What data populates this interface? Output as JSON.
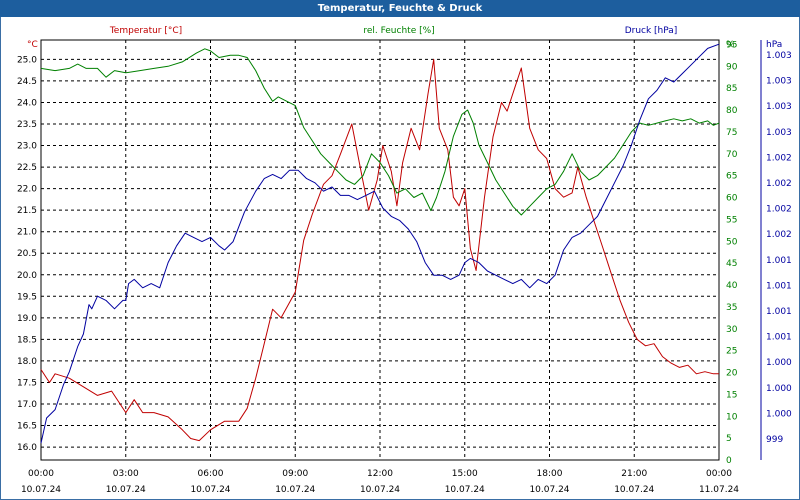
{
  "window": {
    "title": "Temperatur, Feuchte & Druck"
  },
  "colors": {
    "temperature": "#c00000",
    "humidity": "#008000",
    "pressure": "#0000a0",
    "grid": "#000000",
    "frame": "#1d5e9e"
  },
  "chart_data": {
    "type": "line",
    "title": "Temperatur, Feuchte & Druck",
    "x_time_labels": [
      "00:00",
      "03:00",
      "06:00",
      "09:00",
      "12:00",
      "15:00",
      "18:00",
      "21:00",
      "00:00"
    ],
    "x_date_labels": [
      "10.07.24",
      "10.07.24",
      "10.07.24",
      "10.07.24",
      "10.07.24",
      "10.07.24",
      "10.07.24",
      "10.07.24",
      "11.07.24"
    ],
    "x_range_hours": [
      0,
      24
    ],
    "grid": true,
    "axes": {
      "left": {
        "unit": "°C",
        "range": [
          15.7,
          25.45
        ],
        "ticks": [
          "16.0",
          "16.5",
          "17.0",
          "17.5",
          "18.0",
          "18.5",
          "19.0",
          "19.5",
          "20.0",
          "20.5",
          "21.0",
          "21.5",
          "22.0",
          "22.5",
          "23.0",
          "23.5",
          "24.0",
          "24.5",
          "25.0"
        ]
      },
      "right1": {
        "unit": "%",
        "range": [
          0,
          96
        ],
        "ticks": [
          "0",
          "5",
          "10",
          "15",
          "20",
          "25",
          "30",
          "35",
          "40",
          "45",
          "50",
          "55",
          "60",
          "65",
          "70",
          "75",
          "80",
          "85",
          "90",
          "95",
          "%"
        ]
      },
      "right2": {
        "unit": "hPa",
        "range": [
          0,
          100
        ],
        "ticks": [
          "999",
          "1.000",
          "1.000",
          "1.000",
          "1.001",
          "1.001",
          "1.001",
          "1.001",
          "1.002",
          "1.002",
          "1.002",
          "1.002",
          "1.003",
          "1.003",
          "1.003",
          "1.003",
          "hPa"
        ]
      }
    },
    "series": [
      {
        "name": "Temperatur [°C]",
        "axis": "left",
        "points": [
          [
            0,
            17.8
          ],
          [
            0.3,
            17.5
          ],
          [
            0.5,
            17.7
          ],
          [
            1,
            17.6
          ],
          [
            1.5,
            17.4
          ],
          [
            2,
            17.2
          ],
          [
            2.5,
            17.3
          ],
          [
            2.8,
            17.0
          ],
          [
            3,
            16.8
          ],
          [
            3.3,
            17.1
          ],
          [
            3.6,
            16.8
          ],
          [
            4,
            16.8
          ],
          [
            4.5,
            16.7
          ],
          [
            5,
            16.4
          ],
          [
            5.3,
            16.2
          ],
          [
            5.6,
            16.15
          ],
          [
            6,
            16.4
          ],
          [
            6.5,
            16.6
          ],
          [
            7,
            16.6
          ],
          [
            7.3,
            16.9
          ],
          [
            7.6,
            17.6
          ],
          [
            7.9,
            18.4
          ],
          [
            8.2,
            19.2
          ],
          [
            8.5,
            19.0
          ],
          [
            9,
            19.6
          ],
          [
            9.3,
            20.8
          ],
          [
            9.6,
            21.4
          ],
          [
            10,
            22.1
          ],
          [
            10.3,
            22.3
          ],
          [
            10.6,
            22.8
          ],
          [
            11,
            23.5
          ],
          [
            11.3,
            22.5
          ],
          [
            11.6,
            21.5
          ],
          [
            11.9,
            22.2
          ],
          [
            12.1,
            23.0
          ],
          [
            12.4,
            22.4
          ],
          [
            12.6,
            21.6
          ],
          [
            12.8,
            22.6
          ],
          [
            13.1,
            23.4
          ],
          [
            13.4,
            22.9
          ],
          [
            13.7,
            24.2
          ],
          [
            13.9,
            25.0
          ],
          [
            14.1,
            23.4
          ],
          [
            14.4,
            22.9
          ],
          [
            14.6,
            21.8
          ],
          [
            14.8,
            21.6
          ],
          [
            15.0,
            22.0
          ],
          [
            15.2,
            20.6
          ],
          [
            15.4,
            20.1
          ],
          [
            15.7,
            21.8
          ],
          [
            16.0,
            23.2
          ],
          [
            16.3,
            24.0
          ],
          [
            16.5,
            23.8
          ],
          [
            16.8,
            24.4
          ],
          [
            17.0,
            24.8
          ],
          [
            17.3,
            23.4
          ],
          [
            17.6,
            22.9
          ],
          [
            17.9,
            22.7
          ],
          [
            18.2,
            22.0
          ],
          [
            18.5,
            21.8
          ],
          [
            18.8,
            21.9
          ],
          [
            19.0,
            22.5
          ],
          [
            19.3,
            21.8
          ],
          [
            19.6,
            21.2
          ],
          [
            19.9,
            20.6
          ],
          [
            20.2,
            20.0
          ],
          [
            20.5,
            19.4
          ],
          [
            20.8,
            18.9
          ],
          [
            21.1,
            18.5
          ],
          [
            21.4,
            18.35
          ],
          [
            21.7,
            18.4
          ],
          [
            22,
            18.1
          ],
          [
            22.3,
            17.95
          ],
          [
            22.6,
            17.85
          ],
          [
            22.9,
            17.9
          ],
          [
            23.2,
            17.7
          ],
          [
            23.5,
            17.75
          ],
          [
            23.8,
            17.7
          ],
          [
            24,
            17.7
          ]
        ]
      },
      {
        "name": "rel. Feuchte [%]",
        "axis": "right1",
        "points": [
          [
            0,
            89.5
          ],
          [
            0.5,
            89
          ],
          [
            1,
            89.5
          ],
          [
            1.3,
            90.5
          ],
          [
            1.6,
            89.5
          ],
          [
            2,
            89.5
          ],
          [
            2.3,
            87.5
          ],
          [
            2.6,
            89
          ],
          [
            3,
            88.5
          ],
          [
            3.5,
            89
          ],
          [
            4,
            89.5
          ],
          [
            4.5,
            90
          ],
          [
            5,
            91
          ],
          [
            5.5,
            93
          ],
          [
            5.8,
            94
          ],
          [
            6,
            93.5
          ],
          [
            6.3,
            92
          ],
          [
            6.7,
            92.5
          ],
          [
            7,
            92.5
          ],
          [
            7.3,
            92
          ],
          [
            7.6,
            89
          ],
          [
            7.9,
            85
          ],
          [
            8.2,
            82
          ],
          [
            8.4,
            83
          ],
          [
            8.7,
            82
          ],
          [
            9,
            81
          ],
          [
            9.3,
            76
          ],
          [
            9.6,
            73
          ],
          [
            9.9,
            70
          ],
          [
            10.2,
            68
          ],
          [
            10.5,
            66
          ],
          [
            10.8,
            64
          ],
          [
            11.1,
            63
          ],
          [
            11.4,
            65
          ],
          [
            11.7,
            70
          ],
          [
            12.0,
            68
          ],
          [
            12.3,
            65
          ],
          [
            12.6,
            61
          ],
          [
            12.9,
            62
          ],
          [
            13.2,
            60
          ],
          [
            13.5,
            61
          ],
          [
            13.8,
            57
          ],
          [
            14.0,
            60
          ],
          [
            14.3,
            66
          ],
          [
            14.6,
            74
          ],
          [
            14.9,
            79
          ],
          [
            15.1,
            80
          ],
          [
            15.3,
            77
          ],
          [
            15.5,
            72
          ],
          [
            15.8,
            68
          ],
          [
            16.1,
            64
          ],
          [
            16.4,
            61
          ],
          [
            16.7,
            58
          ],
          [
            17.0,
            56
          ],
          [
            17.3,
            58
          ],
          [
            17.6,
            60
          ],
          [
            17.9,
            62
          ],
          [
            18.2,
            63
          ],
          [
            18.5,
            66
          ],
          [
            18.8,
            70
          ],
          [
            19.1,
            66
          ],
          [
            19.4,
            64
          ],
          [
            19.7,
            65
          ],
          [
            20.0,
            67
          ],
          [
            20.3,
            69
          ],
          [
            20.6,
            72
          ],
          [
            20.9,
            75
          ],
          [
            21.2,
            77
          ],
          [
            21.5,
            76.5
          ],
          [
            21.8,
            77
          ],
          [
            22.1,
            77.5
          ],
          [
            22.4,
            78
          ],
          [
            22.7,
            77.5
          ],
          [
            23,
            78
          ],
          [
            23.3,
            77
          ],
          [
            23.6,
            77.5
          ],
          [
            23.8,
            76.5
          ],
          [
            24,
            77
          ]
        ]
      },
      {
        "name": "Druck [hPa]",
        "axis": "right2",
        "points": [
          [
            0,
            4
          ],
          [
            0.2,
            10
          ],
          [
            0.5,
            12
          ],
          [
            0.8,
            18
          ],
          [
            1,
            21
          ],
          [
            1.3,
            27
          ],
          [
            1.5,
            30
          ],
          [
            1.7,
            37
          ],
          [
            1.8,
            36
          ],
          [
            2.0,
            39
          ],
          [
            2.3,
            38
          ],
          [
            2.6,
            36
          ],
          [
            2.9,
            38
          ],
          [
            3.0,
            38
          ],
          [
            3.1,
            42
          ],
          [
            3.3,
            43
          ],
          [
            3.6,
            41
          ],
          [
            3.9,
            42
          ],
          [
            4.2,
            41
          ],
          [
            4.5,
            47
          ],
          [
            4.8,
            51
          ],
          [
            5.1,
            54
          ],
          [
            5.4,
            53
          ],
          [
            5.7,
            52
          ],
          [
            6.0,
            53
          ],
          [
            6.3,
            51
          ],
          [
            6.5,
            50
          ],
          [
            6.8,
            52
          ],
          [
            7.2,
            59
          ],
          [
            7.6,
            64
          ],
          [
            7.9,
            67
          ],
          [
            8.2,
            68
          ],
          [
            8.5,
            67
          ],
          [
            8.8,
            69
          ],
          [
            9.1,
            69
          ],
          [
            9.4,
            67
          ],
          [
            9.7,
            66
          ],
          [
            10.0,
            64
          ],
          [
            10.3,
            65
          ],
          [
            10.6,
            63
          ],
          [
            10.9,
            63
          ],
          [
            11.2,
            62
          ],
          [
            11.5,
            63
          ],
          [
            11.8,
            64
          ],
          [
            12.1,
            60
          ],
          [
            12.4,
            58
          ],
          [
            12.7,
            57
          ],
          [
            13.0,
            55
          ],
          [
            13.3,
            52
          ],
          [
            13.6,
            47
          ],
          [
            13.9,
            44
          ],
          [
            14.2,
            44
          ],
          [
            14.5,
            43
          ],
          [
            14.8,
            44
          ],
          [
            15.0,
            47
          ],
          [
            15.2,
            48
          ],
          [
            15.5,
            47
          ],
          [
            15.8,
            45
          ],
          [
            16.1,
            44
          ],
          [
            16.4,
            43
          ],
          [
            16.7,
            42
          ],
          [
            17.0,
            43
          ],
          [
            17.3,
            41
          ],
          [
            17.6,
            43
          ],
          [
            17.9,
            42
          ],
          [
            18.2,
            44
          ],
          [
            18.5,
            50
          ],
          [
            18.8,
            53
          ],
          [
            19.1,
            54
          ],
          [
            19.4,
            56
          ],
          [
            19.7,
            58
          ],
          [
            20.0,
            62
          ],
          [
            20.3,
            66
          ],
          [
            20.6,
            70
          ],
          [
            20.9,
            75
          ],
          [
            21.2,
            81
          ],
          [
            21.5,
            86
          ],
          [
            21.8,
            88
          ],
          [
            22.1,
            91
          ],
          [
            22.4,
            90
          ],
          [
            22.7,
            92
          ],
          [
            23.0,
            94
          ],
          [
            23.3,
            96
          ],
          [
            23.6,
            98
          ],
          [
            24,
            99
          ]
        ]
      }
    ]
  }
}
